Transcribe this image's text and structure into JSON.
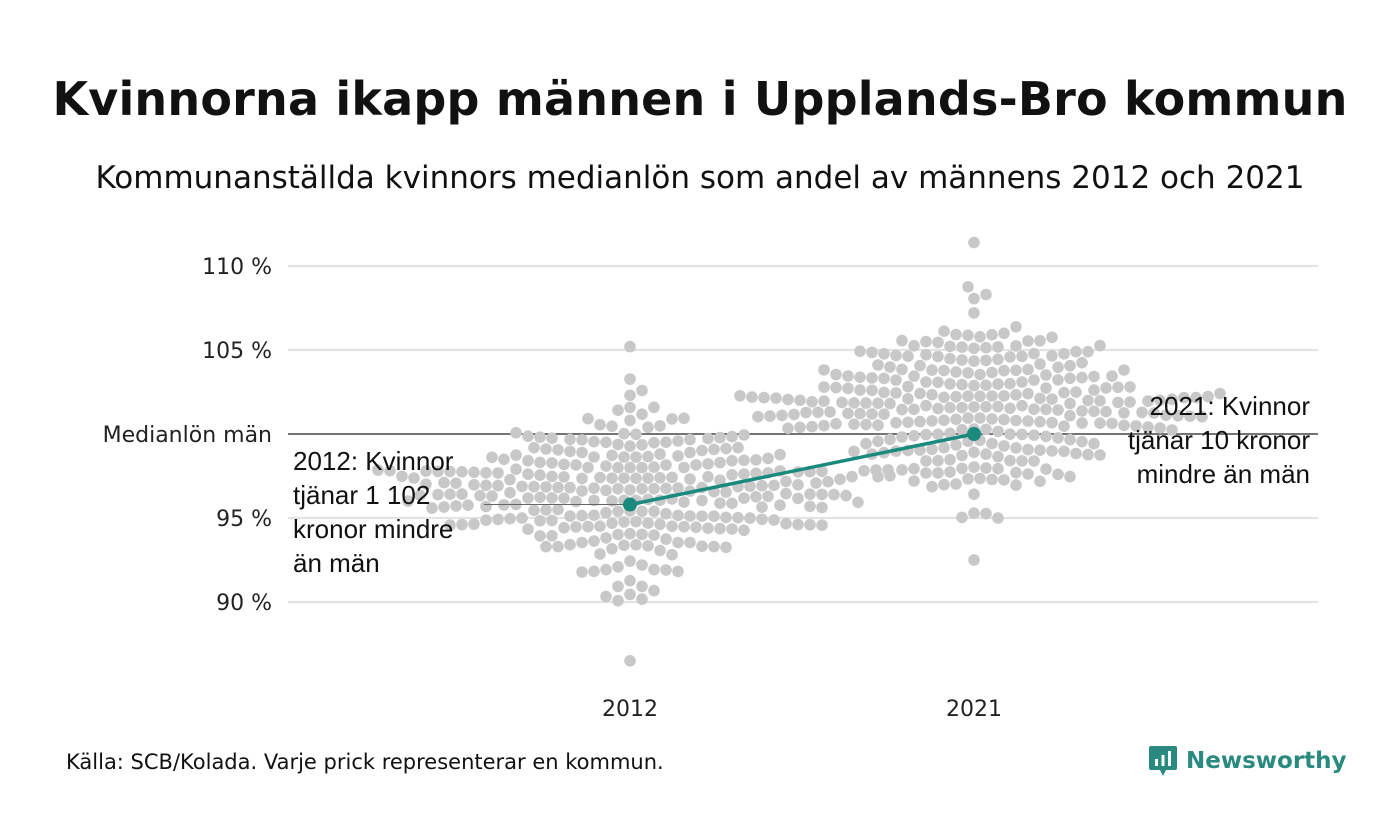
{
  "chart_data": {
    "type": "scatter",
    "title": "Kvinnorna ikapp männen i Upplands-Bro kommun",
    "subtitle": "Kommunanställda kvinnors medianlön som andel av männens 2012 och 2021",
    "categories": [
      "2012",
      "2021"
    ],
    "y_ticks": [
      {
        "value": 90,
        "label": "90 %"
      },
      {
        "value": 95,
        "label": "95 %"
      },
      {
        "value": 100,
        "label": "Medianlön män"
      },
      {
        "value": 105,
        "label": "105 %"
      },
      {
        "value": 110,
        "label": "110 %"
      }
    ],
    "ylim": [
      86.5,
      111.5
    ],
    "grid": true,
    "distribution": {
      "2012": {
        "center": 96.7,
        "spread": 2.4,
        "min": 86.5,
        "max": 105.2,
        "count": 290
      },
      "2021": {
        "center": 101.6,
        "spread": 2.6,
        "min": 92.5,
        "max": 111.4,
        "count": 290
      }
    },
    "highlight": {
      "name": "Upplands-Bro",
      "color": "#1b8a7e",
      "points": [
        {
          "x": "2012",
          "y": 95.8
        },
        {
          "x": "2021",
          "y": 100.0
        }
      ]
    },
    "annotations": [
      {
        "x": "2012",
        "lines": [
          "2012: Kvinnor",
          "tjänar 1 102",
          "kronor mindre",
          "än män"
        ]
      },
      {
        "x": "2021",
        "lines": [
          "2021: Kvinnor",
          "tjänar 10 kronor",
          "mindre än män"
        ]
      }
    ],
    "dot_color": "#c8c8c8"
  },
  "footer": {
    "source": "Källa: SCB/Kolada. Varje prick representerar en kommun.",
    "logo_text": "Newsworthy"
  }
}
